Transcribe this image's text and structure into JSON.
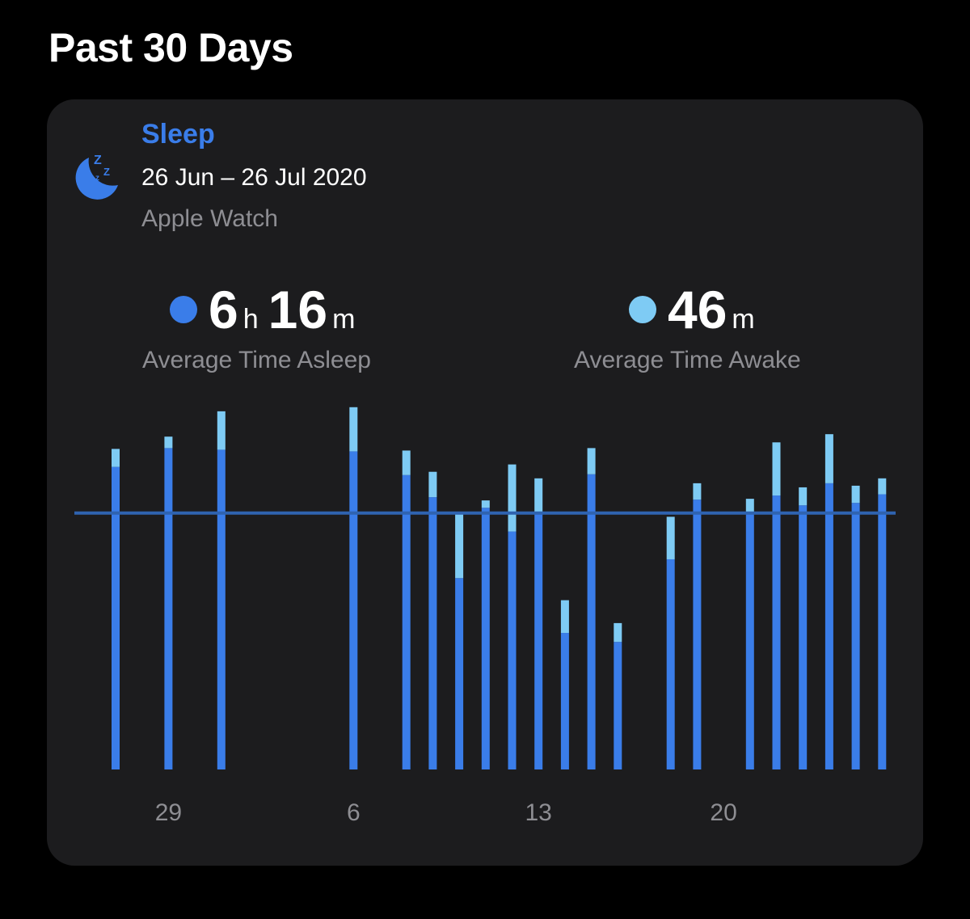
{
  "page": {
    "title": "Past 30 Days"
  },
  "card": {
    "category": "Sleep",
    "date_range": "26 Jun – 26 Jul 2020",
    "source": "Apple Watch",
    "icon": "moon-zzz-icon"
  },
  "stats": {
    "asleep": {
      "hours": "6",
      "hours_unit": "h",
      "minutes": "16",
      "minutes_unit": "m",
      "label": "Average Time Asleep"
    },
    "awake": {
      "minutes": "46",
      "minutes_unit": "m",
      "label": "Average Time Awake"
    }
  },
  "colors": {
    "asleep": "#3a7de9",
    "awake": "#7ecbf4",
    "avg_line": "#2f63b0",
    "card_bg": "#1c1c1e"
  },
  "chart_data": {
    "type": "bar",
    "stacked": true,
    "average_line": 6.27,
    "ylim": [
      0,
      8.5
    ],
    "x_tick_labels": [
      {
        "day": 4,
        "label": "29"
      },
      {
        "day": 11,
        "label": "6"
      },
      {
        "day": 18,
        "label": "13"
      },
      {
        "day": 25,
        "label": "20"
      }
    ],
    "days": [
      1,
      2,
      3,
      4,
      5,
      6,
      7,
      8,
      9,
      10,
      11,
      12,
      13,
      14,
      15,
      16,
      17,
      18,
      19,
      20,
      21,
      22,
      23,
      24,
      25,
      26,
      27,
      28,
      29,
      30,
      31
    ],
    "series": [
      {
        "key": "asleep",
        "values": [
          0,
          7.4,
          0,
          7.86,
          0,
          7.82,
          0,
          0,
          0,
          0,
          7.78,
          0,
          7.2,
          6.66,
          4.68,
          6.4,
          5.82,
          6.3,
          3.34,
          7.22,
          3.12,
          0,
          5.14,
          6.6,
          0,
          6.26,
          6.7,
          6.46,
          7.0,
          6.52,
          6.73
        ]
      },
      {
        "key": "awake",
        "values": [
          0,
          0.44,
          0,
          0.28,
          0,
          0.94,
          0,
          0,
          0,
          0,
          1.08,
          0,
          0.6,
          0.62,
          1.58,
          0.18,
          1.64,
          0.82,
          0.8,
          0.64,
          0.46,
          0,
          1.04,
          0.4,
          0,
          0.36,
          1.3,
          0.44,
          1.2,
          0.42,
          0.39
        ]
      }
    ]
  }
}
